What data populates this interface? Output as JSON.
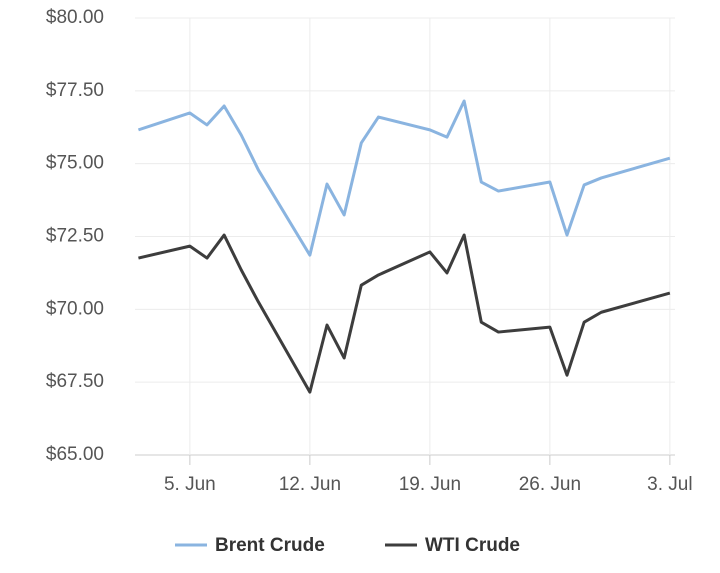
{
  "chart_data": {
    "type": "line",
    "x": [
      2,
      5,
      6,
      7,
      8,
      9,
      12,
      13,
      14,
      15,
      16,
      19,
      20,
      21,
      22,
      23,
      26,
      27,
      28,
      29,
      33
    ],
    "series": [
      {
        "name": "Brent Crude",
        "color": "#8ab4e0",
        "values": [
          76.16,
          76.74,
          76.33,
          76.98,
          75.98,
          74.78,
          71.86,
          74.3,
          73.24,
          75.71,
          76.6,
          76.16,
          75.91,
          77.15,
          74.37,
          74.06,
          74.37,
          72.55,
          74.27,
          74.51,
          75.19
        ]
      },
      {
        "name": "WTI Crude",
        "color": "#3d3d3d",
        "values": [
          71.76,
          72.17,
          71.76,
          72.55,
          71.35,
          70.25,
          67.16,
          69.46,
          68.33,
          70.83,
          71.18,
          71.97,
          71.25,
          72.55,
          69.56,
          69.22,
          69.39,
          67.74,
          69.56,
          69.9,
          70.56
        ]
      }
    ],
    "xlim": [
      1.8,
      33.3
    ],
    "xticks": [
      {
        "value": 5,
        "label": "5. Jun"
      },
      {
        "value": 12,
        "label": "12. Jun"
      },
      {
        "value": 19,
        "label": "19. Jun"
      },
      {
        "value": 26,
        "label": "26. Jun"
      },
      {
        "value": 33,
        "label": "3. Jul"
      }
    ],
    "ylim": [
      65,
      80
    ],
    "yticks": [
      {
        "value": 65,
        "label": "$65.00"
      },
      {
        "value": 67.5,
        "label": "$67.50"
      },
      {
        "value": 70,
        "label": "$70.00"
      },
      {
        "value": 72.5,
        "label": "$72.50"
      },
      {
        "value": 75,
        "label": "$75.00"
      },
      {
        "value": 77.5,
        "label": "$77.50"
      },
      {
        "value": 80,
        "label": "$80.00"
      }
    ],
    "grid": true,
    "legend": "bottom"
  }
}
